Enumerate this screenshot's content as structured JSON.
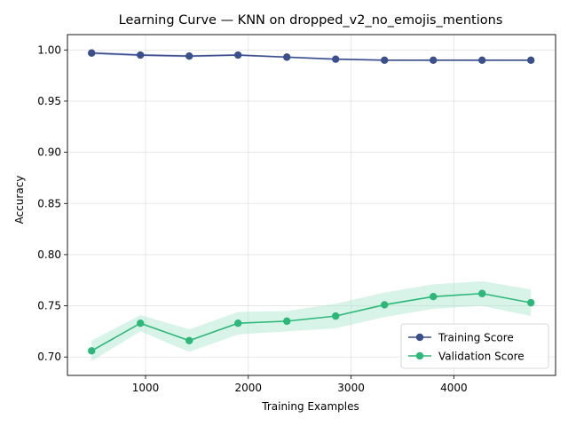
{
  "chart_data": {
    "type": "line",
    "title": "Learning Curve — KNN on dropped_v2_no_emojis_mentions",
    "xlabel": "Training Examples",
    "ylabel": "Accuracy",
    "xlim": [
      240,
      4990
    ],
    "ylim": [
      0.682,
      1.015
    ],
    "xticks": [
      1000,
      2000,
      3000,
      4000
    ],
    "xtick_labels": [
      "1000",
      "2000",
      "3000",
      "4000"
    ],
    "yticks": [
      0.7,
      0.75,
      0.8,
      0.85,
      0.9,
      0.95,
      1.0
    ],
    "ytick_labels": [
      "0.70",
      "0.75",
      "0.80",
      "0.85",
      "0.90",
      "0.95",
      "1.00"
    ],
    "grid": true,
    "legend_position": "lower-right",
    "x": [
      475,
      950,
      1425,
      1900,
      2375,
      2850,
      3325,
      3800,
      4275,
      4750
    ],
    "series": [
      {
        "name": "Training Score",
        "color": "#3b4f8c",
        "fill": "#9aa6cc",
        "values": [
          0.997,
          0.995,
          0.994,
          0.995,
          0.993,
          0.991,
          0.99,
          0.99,
          0.99,
          0.99
        ],
        "std": [
          0.0015,
          0.0012,
          0.0012,
          0.001,
          0.001,
          0.0009,
          0.0008,
          0.0008,
          0.0008,
          0.0008
        ]
      },
      {
        "name": "Validation Score",
        "color": "#2db87a",
        "fill": "#a8e4c9",
        "values": [
          0.706,
          0.733,
          0.716,
          0.733,
          0.735,
          0.74,
          0.751,
          0.759,
          0.762,
          0.753
        ],
        "std": [
          0.01,
          0.008,
          0.011,
          0.011,
          0.01,
          0.012,
          0.012,
          0.012,
          0.012,
          0.013
        ]
      }
    ]
  }
}
